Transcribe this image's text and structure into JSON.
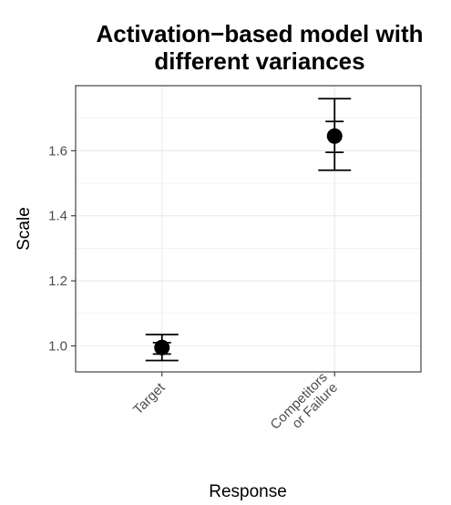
{
  "chart_data": {
    "type": "scatter",
    "title_lines": [
      "Activation−based model with",
      "different variances"
    ],
    "xlabel": "Response",
    "ylabel": "Scale",
    "categories": [
      "Target",
      "Competitors\nor Failure"
    ],
    "ylim": [
      0.92,
      1.8
    ],
    "yticks": [
      1.0,
      1.2,
      1.4,
      1.6
    ],
    "ytick_labels": [
      "1.0",
      "1.2",
      "1.4",
      "1.6"
    ],
    "grid": true,
    "series": [
      {
        "points": [
          {
            "category": "Target",
            "y": 0.995,
            "inner_low": 0.975,
            "inner_high": 1.01,
            "outer_low": 0.955,
            "outer_high": 1.035
          },
          {
            "category": "Competitors\nor Failure",
            "y": 1.645,
            "inner_low": 1.595,
            "inner_high": 1.69,
            "outer_low": 1.54,
            "outer_high": 1.76
          }
        ]
      }
    ],
    "colors": {
      "point": "#000000",
      "grid": "#ebebeb",
      "panel_border": "#333333",
      "tick_text": "#4d4d4d"
    }
  }
}
